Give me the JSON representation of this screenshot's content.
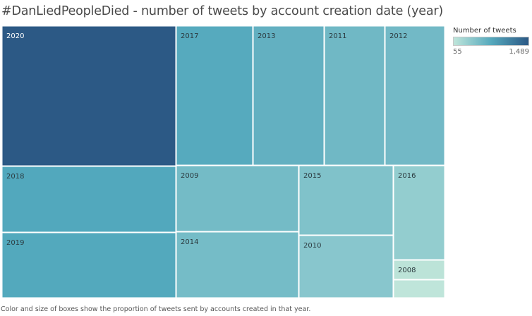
{
  "chart_data": {
    "type": "treemap",
    "title": "#DanLiedPeopleDied - number of tweets by account creation date (year)",
    "caption": "Color and size of boxes show the proportion of tweets sent by accounts created in that year.",
    "legend": {
      "title": "Number of tweets",
      "min_label": "55",
      "max_label": "1,489",
      "min": 55,
      "max": 1489,
      "colors": [
        "#bfe5da",
        "#56a9bd",
        "#2c5985"
      ],
      "placement": "top-right"
    },
    "items": [
      {
        "label": "2020",
        "value": 1489,
        "color": "#2c5985"
      },
      {
        "label": "2017",
        "value": 650,
        "color": "#56aabe"
      },
      {
        "label": "2013",
        "value": 608,
        "color": "#63b0c1"
      },
      {
        "label": "2011",
        "value": 518,
        "color": "#70b8c5"
      },
      {
        "label": "2012",
        "value": 512,
        "color": "#72b9c6"
      },
      {
        "label": "2018",
        "value": 699,
        "color": "#52a8bd"
      },
      {
        "label": "2019",
        "value": 692,
        "color": "#53a9bd"
      },
      {
        "label": "2009",
        "value": 492,
        "color": "#74bbc6"
      },
      {
        "label": "2014",
        "value": 492,
        "color": "#75bcc7"
      },
      {
        "label": "2015",
        "value": 398,
        "color": "#80c2ca"
      },
      {
        "label": "2010",
        "value": 358,
        "color": "#88c6cd"
      },
      {
        "label": "2016",
        "value": 295,
        "color": "#93cdcf"
      },
      {
        "label": "2008",
        "value": 62,
        "color": "#bce3d8"
      },
      {
        "label": "",
        "value": 55,
        "color": "#bfe5da"
      }
    ]
  }
}
